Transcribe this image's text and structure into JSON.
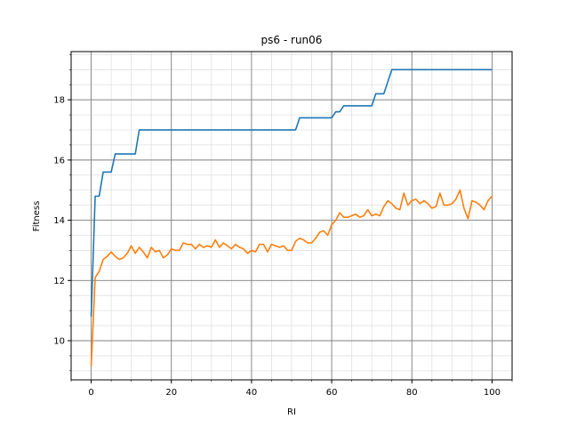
{
  "chart_data": {
    "type": "line",
    "title": "ps6 - run06",
    "xlabel": "RI",
    "ylabel": "Fitness",
    "xlim": [
      -5,
      105
    ],
    "ylim": [
      8.7,
      19.6
    ],
    "x_ticks": [
      0,
      20,
      40,
      60,
      80,
      100
    ],
    "y_ticks": [
      10,
      12,
      14,
      16,
      18
    ],
    "x_minor_step": 5,
    "y_minor_step": 0.5,
    "grid": {
      "major": true,
      "minor": true
    },
    "colors": {
      "series_1": "#1f77b4",
      "series_2": "#ff7f0e",
      "major_grid": "#808080",
      "minor_grid": "#e0e0e0"
    },
    "series": [
      {
        "x": [
          0,
          1,
          2,
          3,
          4,
          5,
          6,
          7,
          8,
          9,
          10,
          11,
          12,
          13,
          14,
          15,
          16,
          17,
          18,
          19,
          20,
          21,
          22,
          23,
          24,
          25,
          26,
          27,
          28,
          29,
          30,
          31,
          32,
          33,
          34,
          35,
          36,
          37,
          38,
          39,
          40,
          41,
          42,
          43,
          44,
          45,
          46,
          47,
          48,
          49,
          50,
          51,
          52,
          53,
          54,
          55,
          56,
          57,
          58,
          59,
          60,
          61,
          62,
          63,
          64,
          65,
          66,
          67,
          68,
          69,
          70,
          71,
          72,
          73,
          74,
          75,
          76,
          77,
          78,
          79,
          80,
          81,
          82,
          83,
          84,
          85,
          86,
          87,
          88,
          89,
          90,
          91,
          92,
          93,
          94,
          95,
          96,
          97,
          98,
          99,
          100
        ],
        "values": [
          10.8,
          14.8,
          14.8,
          15.6,
          15.6,
          15.6,
          16.2,
          16.2,
          16.2,
          16.2,
          16.2,
          16.2,
          17.0,
          17.0,
          17.0,
          17.0,
          17.0,
          17.0,
          17.0,
          17.0,
          17.0,
          17.0,
          17.0,
          17.0,
          17.0,
          17.0,
          17.0,
          17.0,
          17.0,
          17.0,
          17.0,
          17.0,
          17.0,
          17.0,
          17.0,
          17.0,
          17.0,
          17.0,
          17.0,
          17.0,
          17.0,
          17.0,
          17.0,
          17.0,
          17.0,
          17.0,
          17.0,
          17.0,
          17.0,
          17.0,
          17.0,
          17.0,
          17.4,
          17.4,
          17.4,
          17.4,
          17.4,
          17.4,
          17.4,
          17.4,
          17.4,
          17.6,
          17.6,
          17.8,
          17.8,
          17.8,
          17.8,
          17.8,
          17.8,
          17.8,
          17.8,
          18.2,
          18.2,
          18.2,
          18.6,
          19.0,
          19.0,
          19.0,
          19.0,
          19.0,
          19.0,
          19.0,
          19.0,
          19.0,
          19.0,
          19.0,
          19.0,
          19.0,
          19.0,
          19.0,
          19.0,
          19.0,
          19.0,
          19.0,
          19.0,
          19.0,
          19.0,
          19.0,
          19.0,
          19.0,
          19.0
        ]
      },
      {
        "x": [
          0,
          1,
          2,
          3,
          4,
          5,
          6,
          7,
          8,
          9,
          10,
          11,
          12,
          13,
          14,
          15,
          16,
          17,
          18,
          19,
          20,
          21,
          22,
          23,
          24,
          25,
          26,
          27,
          28,
          29,
          30,
          31,
          32,
          33,
          34,
          35,
          36,
          37,
          38,
          39,
          40,
          41,
          42,
          43,
          44,
          45,
          46,
          47,
          48,
          49,
          50,
          51,
          52,
          53,
          54,
          55,
          56,
          57,
          58,
          59,
          60,
          61,
          62,
          63,
          64,
          65,
          66,
          67,
          68,
          69,
          70,
          71,
          72,
          73,
          74,
          75,
          76,
          77,
          78,
          79,
          80,
          81,
          82,
          83,
          84,
          85,
          86,
          87,
          88,
          89,
          90,
          91,
          92,
          93,
          94,
          95,
          96,
          97,
          98,
          99,
          100
        ],
        "values": [
          9.15,
          12.1,
          12.3,
          12.7,
          12.8,
          12.95,
          12.8,
          12.7,
          12.75,
          12.9,
          13.15,
          12.9,
          13.1,
          12.95,
          12.75,
          13.1,
          12.95,
          13.0,
          12.75,
          12.85,
          13.05,
          13.0,
          13.0,
          13.25,
          13.2,
          13.2,
          13.05,
          13.2,
          13.1,
          13.15,
          13.1,
          13.35,
          13.1,
          13.25,
          13.15,
          13.05,
          13.2,
          13.1,
          13.05,
          12.9,
          13.0,
          12.95,
          13.2,
          13.2,
          12.95,
          13.2,
          13.15,
          13.1,
          13.15,
          13.0,
          13.0,
          13.3,
          13.4,
          13.35,
          13.25,
          13.25,
          13.4,
          13.6,
          13.65,
          13.5,
          13.85,
          14.0,
          14.25,
          14.1,
          14.1,
          14.15,
          14.2,
          14.1,
          14.15,
          14.35,
          14.15,
          14.2,
          14.15,
          14.45,
          14.65,
          14.55,
          14.4,
          14.35,
          14.9,
          14.5,
          14.65,
          14.7,
          14.55,
          14.65,
          14.55,
          14.4,
          14.45,
          14.9,
          14.5,
          14.5,
          14.55,
          14.7,
          15.0,
          14.4,
          14.05,
          14.65,
          14.6,
          14.5,
          14.35,
          14.65,
          14.8
        ]
      }
    ]
  }
}
